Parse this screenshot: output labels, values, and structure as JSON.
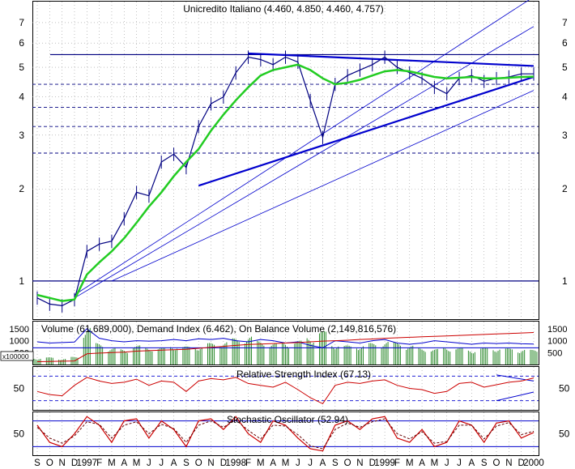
{
  "colors": {
    "price": "#000080",
    "trendline": "#0000cd",
    "moving_average": "#22cc22",
    "volume_bars": "#2e8b2e",
    "demand_index": "#0000cd",
    "on_balance_volume": "#cc0000",
    "rsi": "#cc0000",
    "stochastic_k": "#cc0000",
    "stochastic_d": "#660000",
    "grid": "#999999"
  },
  "chart_data": [
    {
      "type": "line",
      "title": "Unicredito Italiano (4.460, 4.850, 4.460, 4.757)",
      "y_scale": "log",
      "ylim": [
        0.75,
        8.2
      ],
      "y_ticks": [
        "1",
        "2",
        "3",
        "4",
        "5",
        "6",
        "7"
      ],
      "y_tick_values": [
        1,
        2,
        3,
        4,
        5,
        6,
        7
      ],
      "x_month_labels": [
        "S",
        "O",
        "N",
        "D",
        "1997",
        "F",
        "M",
        "A",
        "M",
        "J",
        "J",
        "A",
        "S",
        "O",
        "N",
        "D",
        "1998",
        "F",
        "M",
        "A",
        "M",
        "J",
        "J",
        "A",
        "S",
        "O",
        "N",
        "D",
        "1999",
        "F",
        "M",
        "A",
        "M",
        "J",
        "J",
        "A",
        "S",
        "O",
        "N",
        "D",
        "2000"
      ],
      "grid": true,
      "series": [
        {
          "role": "price",
          "x": [
            0,
            1,
            2,
            3,
            4,
            5,
            6,
            7,
            8,
            9,
            10,
            11,
            12,
            13,
            14,
            15,
            16,
            17,
            18,
            19,
            20,
            21,
            22,
            23,
            24,
            25,
            26,
            27,
            28,
            29,
            30,
            31,
            32,
            33,
            34,
            35,
            36,
            37,
            38,
            39,
            40
          ],
          "values": [
            0.88,
            0.84,
            0.83,
            0.87,
            1.25,
            1.32,
            1.35,
            1.6,
            1.95,
            1.9,
            2.45,
            2.6,
            2.35,
            3.2,
            3.8,
            4.0,
            4.8,
            5.4,
            5.3,
            5.1,
            5.4,
            5.2,
            3.9,
            2.95,
            4.4,
            4.7,
            4.9,
            5.1,
            5.4,
            5.0,
            4.8,
            4.6,
            4.3,
            4.1,
            4.6,
            4.7,
            4.5,
            4.6,
            4.65,
            4.757,
            4.757
          ]
        },
        {
          "role": "moving_average",
          "x": [
            0,
            1,
            2,
            3,
            4,
            5,
            6,
            7,
            8,
            9,
            10,
            11,
            12,
            13,
            14,
            15,
            16,
            17,
            18,
            19,
            20,
            21,
            22,
            23,
            24,
            25,
            26,
            27,
            28,
            29,
            30,
            31,
            32,
            33,
            34,
            35,
            36,
            37,
            38,
            39,
            40
          ],
          "values": [
            0.9,
            0.88,
            0.86,
            0.87,
            1.05,
            1.15,
            1.25,
            1.38,
            1.55,
            1.75,
            1.95,
            2.2,
            2.45,
            2.7,
            3.1,
            3.5,
            3.9,
            4.3,
            4.7,
            4.9,
            5.0,
            5.1,
            4.9,
            4.6,
            4.4,
            4.45,
            4.55,
            4.7,
            4.85,
            4.9,
            4.85,
            4.75,
            4.65,
            4.6,
            4.62,
            4.65,
            4.6,
            4.6,
            4.62,
            4.65,
            4.66
          ]
        }
      ],
      "reference_lines": [
        1.0,
        2.62,
        3.2,
        3.7,
        4.4,
        5.5
      ]
    },
    {
      "type": "bar",
      "title": "Volume (61,689,000), Demand Index (6.462), On Balance Volume (2,149,816,576)",
      "unit_label": "x100000",
      "y_ticks": [
        "500",
        "1000",
        "1500"
      ],
      "y_tick_values": [
        500,
        1000,
        1500
      ],
      "ylim": [
        0,
        1800
      ],
      "series": [
        {
          "name": "Volume",
          "values": [
            280,
            300,
            260,
            320,
            1600,
            900,
            700,
            650,
            800,
            750,
            700,
            820,
            760,
            800,
            900,
            1000,
            1100,
            1200,
            1000,
            900,
            950,
            1000,
            1200,
            1400,
            900,
            800,
            850,
            900,
            1000,
            950,
            800,
            700,
            650,
            750,
            700,
            650,
            700,
            720,
            680,
            660,
            617
          ]
        },
        {
          "name": "Demand Index",
          "values": [
            950,
            900,
            920,
            940,
            1500,
            1100,
            1000,
            950,
            1000,
            980,
            1000,
            1050,
            1000,
            1080,
            1050,
            1100,
            1000,
            950,
            1050,
            1000,
            900,
            950,
            800,
            700,
            1000,
            950,
            900,
            1000,
            1050,
            900,
            850,
            900,
            1000,
            950,
            900,
            850,
            900,
            880,
            900,
            870,
            860
          ]
        },
        {
          "name": "On Balance Volume",
          "values": [
            120,
            130,
            140,
            150,
            450,
            480,
            500,
            520,
            560,
            580,
            600,
            620,
            640,
            680,
            720,
            760,
            800,
            840,
            860,
            880,
            900,
            920,
            950,
            980,
            1000,
            1020,
            1050,
            1070,
            1100,
            1120,
            1140,
            1160,
            1180,
            1200,
            1220,
            1240,
            1260,
            1280,
            1300,
            1320,
            1340
          ]
        }
      ]
    },
    {
      "type": "line",
      "title": "Relative Strength Index (67.13)",
      "y_ticks": [
        "50"
      ],
      "y_tick_values": [
        50
      ],
      "ylim": [
        15,
        85
      ],
      "reference_lines": [
        70,
        30
      ],
      "series": [
        {
          "name": "RSI",
          "values": [
            45,
            40,
            38,
            55,
            68,
            62,
            58,
            60,
            65,
            55,
            62,
            60,
            45,
            62,
            66,
            64,
            68,
            58,
            55,
            52,
            60,
            48,
            35,
            25,
            55,
            60,
            58,
            62,
            64,
            55,
            50,
            48,
            42,
            45,
            58,
            60,
            52,
            56,
            60,
            62,
            67
          ]
        }
      ]
    },
    {
      "type": "line",
      "title": "Stochastic Oscillator (52.94)",
      "y_ticks": [
        "50"
      ],
      "y_tick_values": [
        50
      ],
      "ylim": [
        0,
        100
      ],
      "reference_lines": [
        80,
        20
      ],
      "series": [
        {
          "name": "%K",
          "values": [
            70,
            30,
            20,
            50,
            90,
            70,
            30,
            80,
            85,
            40,
            80,
            60,
            20,
            80,
            85,
            60,
            90,
            50,
            30,
            80,
            70,
            40,
            15,
            10,
            70,
            80,
            60,
            85,
            90,
            40,
            30,
            60,
            20,
            30,
            80,
            70,
            30,
            75,
            80,
            40,
            53
          ]
        },
        {
          "name": "%D",
          "values": [
            65,
            40,
            28,
            45,
            78,
            72,
            40,
            70,
            78,
            50,
            72,
            62,
            30,
            70,
            80,
            65,
            82,
            58,
            38,
            70,
            68,
            48,
            22,
            15,
            60,
            75,
            65,
            78,
            85,
            50,
            38,
            55,
            28,
            32,
            70,
            70,
            38,
            68,
            76,
            48,
            56
          ]
        }
      ]
    }
  ]
}
